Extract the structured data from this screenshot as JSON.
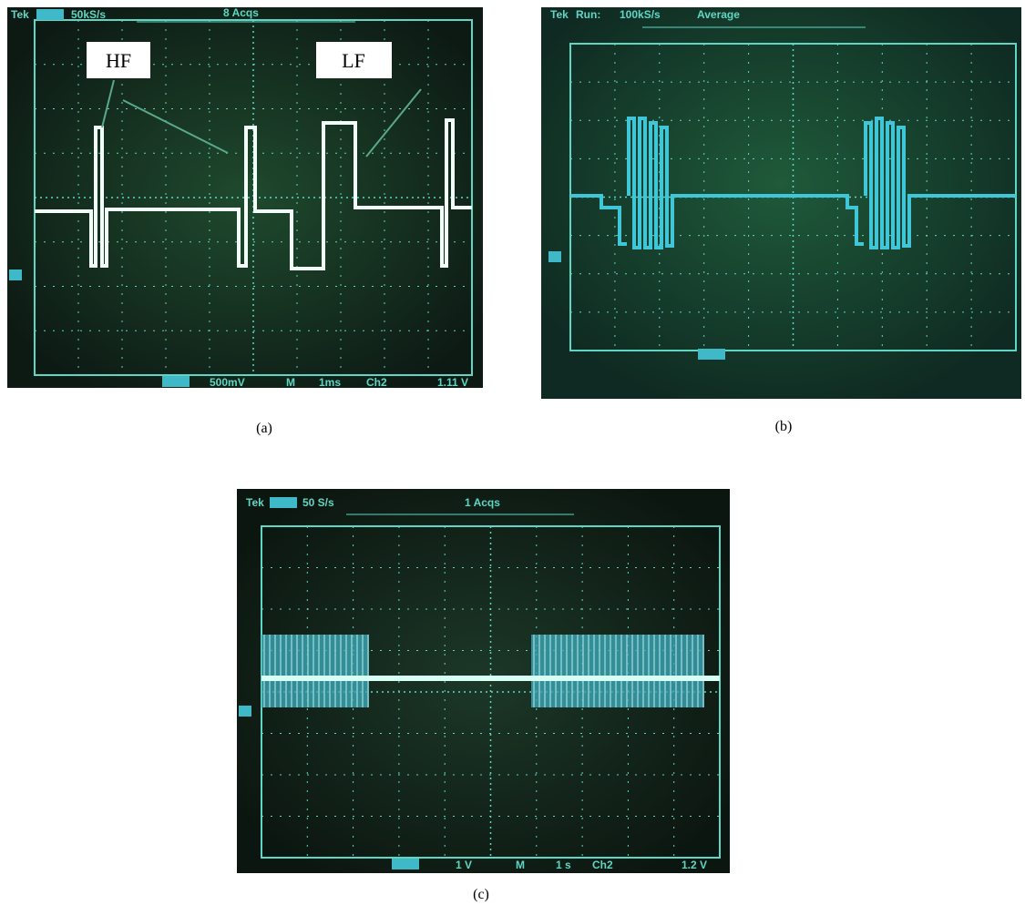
{
  "panel_a": {
    "header": {
      "brand": "Tek",
      "rate": "50kS/s",
      "acqs": "8 Acqs"
    },
    "labels": [
      "HF",
      "LF"
    ],
    "footer": {
      "volts": "500mV",
      "mode": "M",
      "time": "1ms",
      "channel": "Ch2",
      "trigger": "1.11 V"
    },
    "caption": "(a)"
  },
  "panel_b": {
    "header": {
      "brand": "Tek",
      "status": "Run:",
      "rate": "100kS/s",
      "mode": "Average"
    },
    "caption": "(b)"
  },
  "panel_c": {
    "header": {
      "brand": "Tek",
      "rate": "50 S/s",
      "acqs": "1 Acqs"
    },
    "footer": {
      "volts": "1 V",
      "mode": "M",
      "time": "1 s",
      "channel": "Ch2",
      "trigger": "1.2 V"
    },
    "caption": "(c)"
  }
}
